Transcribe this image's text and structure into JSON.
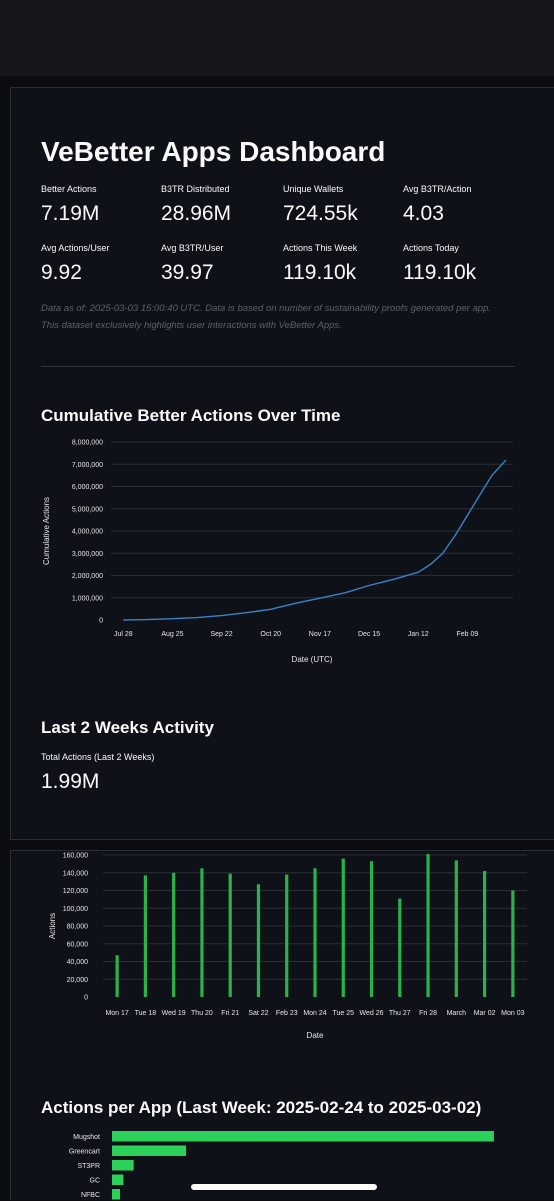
{
  "dashboard": {
    "title": "VeBetter Apps Dashboard",
    "metrics": [
      {
        "label": "Better Actions",
        "value": "7.19M"
      },
      {
        "label": "B3TR Distributed",
        "value": "28.96M"
      },
      {
        "label": "Unique Wallets",
        "value": "724.55k"
      },
      {
        "label": "Avg B3TR/Action",
        "value": "4.03"
      },
      {
        "label": "Avg Actions/User",
        "value": "9.92"
      },
      {
        "label": "Avg B3TR/User",
        "value": "39.97"
      },
      {
        "label": "Actions This Week",
        "value": "119.10k"
      },
      {
        "label": "Actions Today",
        "value": "119.10k"
      }
    ],
    "note": "Data as of: 2025-03-03 15:00:40 UTC. Data is based on number of sustainability proofs generated per app. This dataset exclusively highlights user interactions with VeBetter Apps."
  },
  "sections": {
    "cumulative_title": "Cumulative Better Actions Over Time",
    "two_weeks_title": "Last 2 Weeks Activity",
    "two_weeks_metric": {
      "label": "Total Actions (Last 2 Weeks)",
      "value": "1.99M"
    },
    "per_app_title": "Actions per App (Last Week: 2025-02-24 to 2025-03-02)"
  },
  "colors": {
    "line": "#3b82c4",
    "bar": "#2ab34a",
    "hbar": "#2bd158",
    "grid": "#2a2d35"
  },
  "chart_data": [
    {
      "type": "line",
      "title": "Cumulative Better Actions Over Time",
      "xlabel": "Date (UTC)",
      "ylabel": "Cumulative Actions",
      "ylim": [
        0,
        8000000
      ],
      "yticks": [
        "0",
        "1,000,000",
        "2,000,000",
        "3,000,000",
        "4,000,000",
        "5,000,000",
        "6,000,000",
        "7,000,000",
        "8,000,000"
      ],
      "xticks": [
        "Jul 28",
        "Aug 25",
        "Sep 22",
        "Oct 20",
        "Nov 17",
        "Dec 15",
        "Jan 12",
        "Feb 09"
      ],
      "grid": true,
      "series": [
        {
          "x": [
            "2024-07-28",
            "2024-08-11",
            "2024-08-25",
            "2024-09-08",
            "2024-09-22",
            "2024-10-06",
            "2024-10-20",
            "2024-11-03",
            "2024-11-17",
            "2024-12-01",
            "2024-12-15",
            "2024-12-29",
            "2025-01-12",
            "2025-01-19",
            "2025-01-26",
            "2025-02-02",
            "2025-02-09",
            "2025-02-16",
            "2025-02-23",
            "2025-03-03"
          ],
          "values": [
            0,
            20000,
            60000,
            110000,
            200000,
            330000,
            480000,
            750000,
            980000,
            1220000,
            1550000,
            1830000,
            2150000,
            2500000,
            3000000,
            3800000,
            4700000,
            5600000,
            6500000,
            7190000
          ]
        }
      ]
    },
    {
      "type": "bar",
      "xlabel": "Date",
      "ylabel": "Actions",
      "ylim": [
        0,
        160000
      ],
      "yticks": [
        "0",
        "20,000",
        "40,000",
        "60,000",
        "80,000",
        "100,000",
        "120,000",
        "140,000",
        "160,000"
      ],
      "categories": [
        "Mon 17",
        "Tue 18",
        "Wed 19",
        "Thu 20",
        "Fri 21",
        "Sat 22",
        "Feb 23",
        "Mon 24",
        "Tue 25",
        "Wed 26",
        "Thu 27",
        "Fri 28",
        "March",
        "Mar 02",
        "Mon 03"
      ],
      "values": [
        47000,
        137000,
        140000,
        145000,
        139000,
        127000,
        138000,
        145000,
        156000,
        153000,
        111000,
        161000,
        154000,
        142000,
        120000
      ]
    },
    {
      "type": "bar",
      "orientation": "horizontal",
      "title": "Actions per App (Last Week: 2025-02-24 to 2025-03-02)",
      "categories": [
        "Mugshot",
        "Greencart",
        "ST3PR",
        "GC",
        "NFBC"
      ],
      "values": [
        670000,
        130000,
        38000,
        20000,
        14000
      ]
    }
  ]
}
